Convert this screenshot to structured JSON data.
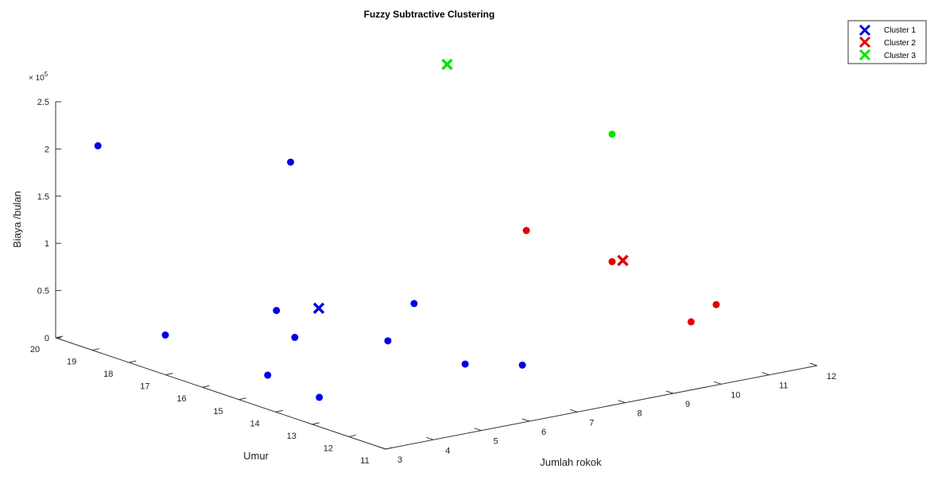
{
  "chart_data": {
    "type": "scatter3d",
    "title": "Fuzzy Subtractive Clustering",
    "xlabel": "Jumlah rokok",
    "ylabel": "Umur",
    "zlabel": "Biaya /bulan",
    "z_exponent_label": "× 10",
    "z_exponent_power": "5",
    "xlim": [
      3,
      12
    ],
    "ylim": [
      11,
      20
    ],
    "zlim": [
      0,
      250000
    ],
    "x_ticks": [
      "3",
      "4",
      "5",
      "6",
      "7",
      "8",
      "9",
      "10",
      "11",
      "12"
    ],
    "y_ticks": [
      "11",
      "12",
      "13",
      "14",
      "15",
      "16",
      "17",
      "18",
      "19",
      "20"
    ],
    "z_ticks": [
      "0",
      "0.5",
      "1",
      "1.5",
      "2",
      "2.5"
    ],
    "legend": {
      "placement": "top-right",
      "entries": [
        "Cluster 1",
        "Cluster 2",
        "Cluster 3"
      ]
    },
    "series": [
      {
        "name": "Cluster 1",
        "color": "#0000e6",
        "points": [
          {
            "x": 3.5,
            "y": 19.5,
            "z": 205000
          },
          {
            "x": 3.3,
            "y": 17.4,
            "z": 34000
          },
          {
            "x": 3.6,
            "y": 15.0,
            "z": 20000
          },
          {
            "x": 4.7,
            "y": 16.2,
            "z": 62000
          },
          {
            "x": 5.3,
            "y": 16.6,
            "z": 208000
          },
          {
            "x": 4.7,
            "y": 15.7,
            "z": 40000
          },
          {
            "x": 5.8,
            "y": 14.6,
            "z": 40000
          },
          {
            "x": 4.6,
            "y": 14.9,
            "z": -12000
          },
          {
            "x": 6.5,
            "y": 14.8,
            "z": 70000
          },
          {
            "x": 6.8,
            "y": 13.8,
            "z": 16000
          },
          {
            "x": 7.0,
            "y": 12.5,
            "z": 30000
          }
        ],
        "center": {
          "x": 5.2,
          "y": 15.7,
          "z": 66000
        }
      },
      {
        "name": "Cluster 2",
        "color": "#e60000",
        "points": [
          {
            "x": 8.0,
            "y": 13.7,
            "z": 147000
          },
          {
            "x": 9.1,
            "y": 12.8,
            "z": 115000
          },
          {
            "x": 10.9,
            "y": 13.0,
            "z": 31000
          },
          {
            "x": 11.5,
            "y": 13.1,
            "z": 42000
          }
        ],
        "center": {
          "x": 9.4,
          "y": 12.9,
          "z": 112000
        }
      },
      {
        "name": "Cluster 3",
        "color": "#00e600",
        "points": [
          {
            "x": 9.1,
            "y": 12.8,
            "z": 250000
          }
        ],
        "center": {
          "x": 7.8,
          "y": 15.6,
          "z": 300000
        }
      }
    ]
  }
}
